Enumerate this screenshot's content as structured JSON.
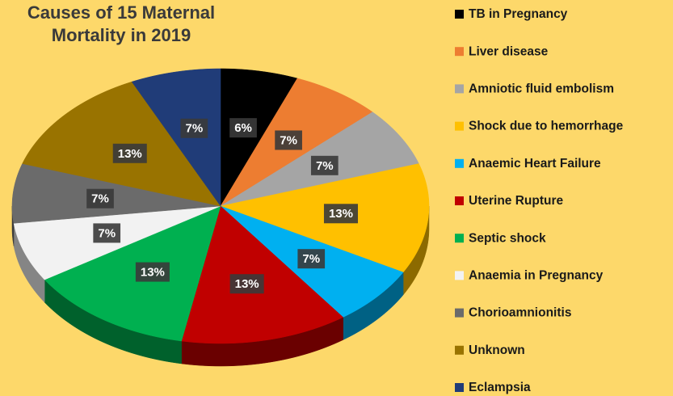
{
  "chart_data": {
    "type": "pie",
    "title": "Causes of 15 Maternal Mortality in 2019",
    "categories": [
      "TB in Pregnancy",
      "Liver disease",
      "Amniotic fluid embolism",
      "Shock due to hemorrhage",
      "Anaemic Heart Failure",
      "Uterine Rupture",
      "Septic shock",
      "Anaemia in Pregnancy",
      "Chorioamnionitis",
      "Unknown",
      "Eclampsia"
    ],
    "values": [
      6,
      7,
      7,
      13,
      7,
      13,
      13,
      7,
      7,
      13,
      7
    ],
    "value_labels": [
      "6%",
      "7%",
      "7%",
      "13%",
      "7%",
      "13%",
      "13%",
      "7%",
      "7%",
      "13%",
      "7%"
    ],
    "colors": [
      "#000000",
      "#ed7d31",
      "#a5a5a5",
      "#ffc000",
      "#00b0f0",
      "#c00000",
      "#00b050",
      "#f2f2f2",
      "#6b6b6b",
      "#997300",
      "#203c78"
    ],
    "legend": "right"
  }
}
